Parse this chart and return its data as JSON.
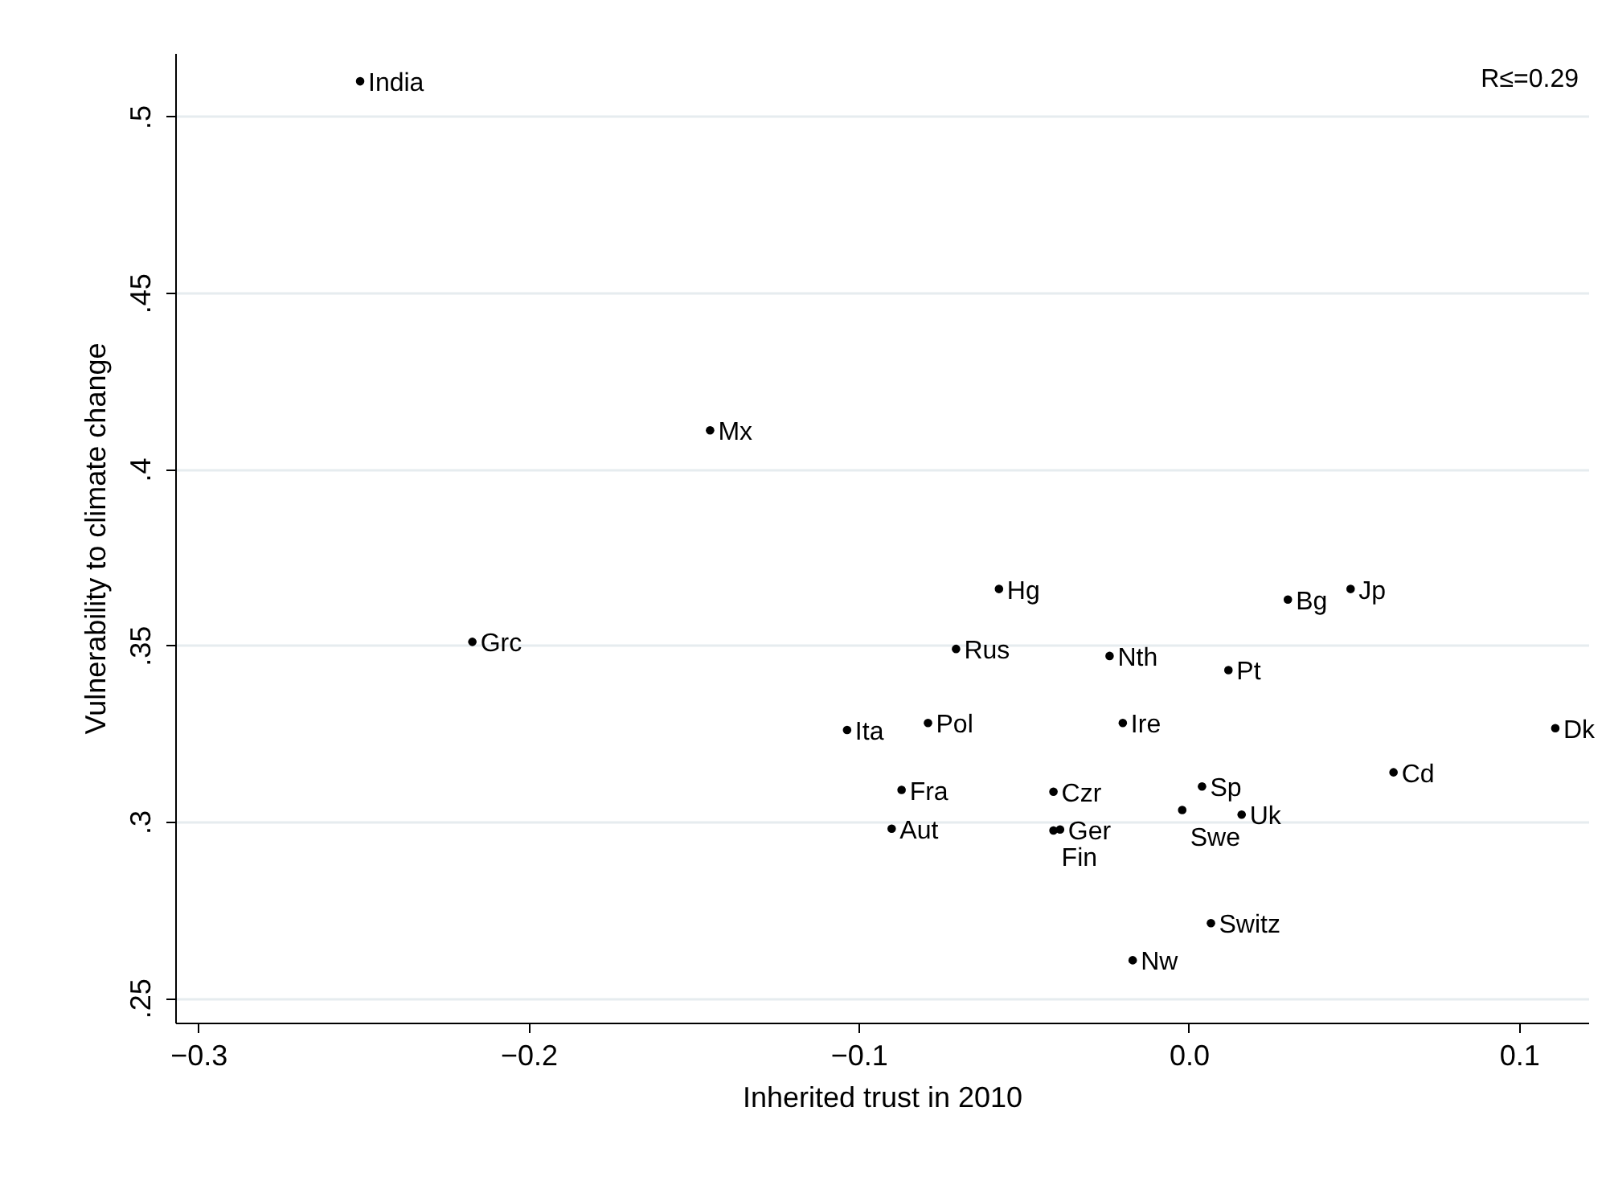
{
  "chart_data": {
    "type": "scatter",
    "xlabel": "Inherited trust in 2010",
    "ylabel": "Vulnerability to climate change",
    "xlim": [
      -0.307,
      0.121
    ],
    "ylim": [
      0.243,
      0.518
    ],
    "xticks": [
      -0.3,
      -0.2,
      -0.1,
      {
        "value": 0,
        "label": "0.0"
      },
      0.1
    ],
    "yticks": [
      {
        "value": 0.25,
        "label": ".25"
      },
      {
        "value": 0.3,
        "label": ".3"
      },
      {
        "value": 0.35,
        "label": ".35"
      },
      {
        "value": 0.4,
        "label": ".4"
      },
      {
        "value": 0.45,
        "label": ".45"
      },
      {
        "value": 0.5,
        "label": ".5"
      }
    ],
    "grid": "y",
    "marker": "circle",
    "legend": false,
    "annotations": [
      "R≤=0.29"
    ],
    "series": [
      {
        "name": "India",
        "color": "#000000",
        "x": [
          -0.251
        ],
        "values": [
          0.51
        ]
      },
      {
        "name": "Mx",
        "color": "#000000",
        "x": [
          -0.145
        ],
        "values": [
          0.411
        ]
      },
      {
        "name": "Grc",
        "color": "#000000",
        "x": [
          -0.217
        ],
        "values": [
          0.351
        ]
      },
      {
        "name": "Hg",
        "color": "#000000",
        "x": [
          -0.0575
        ],
        "values": [
          0.366
        ]
      },
      {
        "name": "Bg",
        "color": "#000000",
        "x": [
          0.03
        ],
        "values": [
          0.363
        ]
      },
      {
        "name": "Jp",
        "color": "#000000",
        "x": [
          0.049
        ],
        "values": [
          0.366
        ]
      },
      {
        "name": "Rus",
        "color": "#000000",
        "x": [
          -0.0705
        ],
        "values": [
          0.349
        ]
      },
      {
        "name": "Nth",
        "color": "#000000",
        "x": [
          -0.024
        ],
        "values": [
          0.347
        ]
      },
      {
        "name": "Pt",
        "color": "#000000",
        "x": [
          0.012
        ],
        "values": [
          0.343
        ]
      },
      {
        "name": "Ita",
        "color": "#000000",
        "x": [
          -0.1035
        ],
        "values": [
          0.326
        ]
      },
      {
        "name": "Pol",
        "color": "#000000",
        "x": [
          -0.079
        ],
        "values": [
          0.328
        ]
      },
      {
        "name": "Ire",
        "color": "#000000",
        "x": [
          -0.02
        ],
        "values": [
          0.328
        ]
      },
      {
        "name": "Dk",
        "color": "#000000",
        "x": [
          0.111
        ],
        "values": [
          0.3265
        ]
      },
      {
        "name": "Cd",
        "color": "#000000",
        "x": [
          0.062
        ],
        "values": [
          0.314
        ]
      },
      {
        "name": "Fra",
        "color": "#000000",
        "x": [
          -0.087
        ],
        "values": [
          0.309
        ]
      },
      {
        "name": "Czr",
        "color": "#000000",
        "x": [
          -0.041
        ],
        "values": [
          0.3085
        ]
      },
      {
        "name": "Sp",
        "color": "#000000",
        "x": [
          0.004
        ],
        "values": [
          0.31
        ]
      },
      {
        "name": "Swe",
        "color": "#000000",
        "x": [
          -0.002
        ],
        "values": [
          0.3033
        ]
      },
      {
        "name": "Uk",
        "color": "#000000",
        "x": [
          0.016
        ],
        "values": [
          0.302
        ]
      },
      {
        "name": "Aut",
        "color": "#000000",
        "x": [
          -0.09
        ],
        "values": [
          0.298
        ]
      },
      {
        "name": "Ger",
        "color": "#000000",
        "x": [
          -0.039
        ],
        "values": [
          0.2978
        ]
      },
      {
        "name": "Fin",
        "color": "#000000",
        "x": [
          -0.041
        ],
        "values": [
          0.2975
        ]
      },
      {
        "name": "Switz",
        "color": "#000000",
        "x": [
          0.0067
        ],
        "values": [
          0.2712
        ]
      },
      {
        "name": "Nw",
        "color": "#000000",
        "x": [
          -0.017
        ],
        "values": [
          0.2607
        ]
      }
    ]
  }
}
